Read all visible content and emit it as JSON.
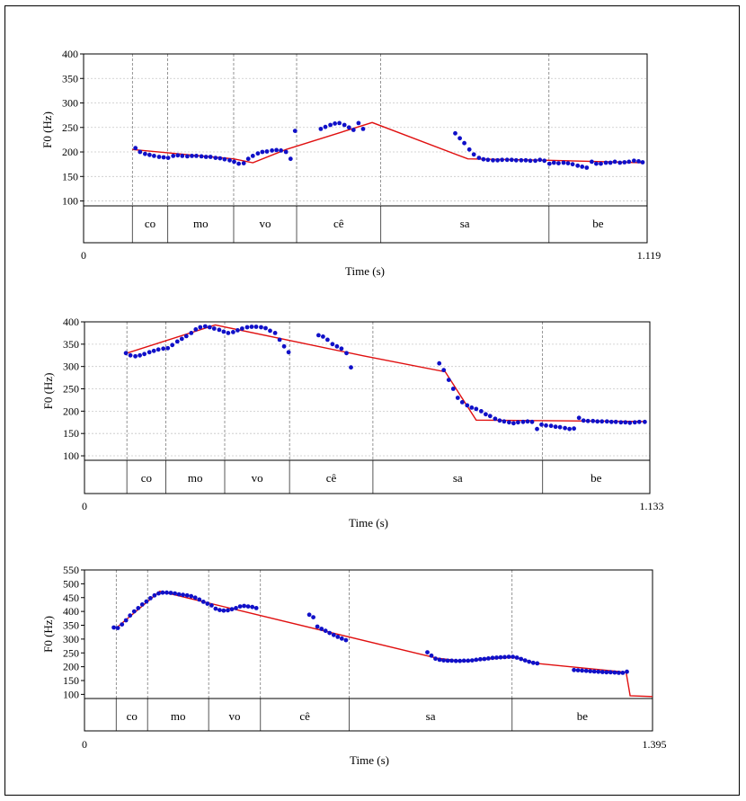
{
  "colors": {
    "points": "#1010c8",
    "fitted_line": "#e01010",
    "grid": "#c8c8c8",
    "divider": "#7a7a7a",
    "frame": "#000000"
  },
  "chart_data": [
    {
      "type": "scatter",
      "ylabel": "F0 (Hz)",
      "xlabel": "Time (s)",
      "xlim": [
        0,
        1.119
      ],
      "x_tick_labels": [
        "0",
        "1.119"
      ],
      "ylim": [
        90,
        400
      ],
      "y_ticks": [
        100,
        150,
        200,
        250,
        300,
        350,
        400
      ],
      "grid": true,
      "syllables": [
        {
          "label": "co",
          "start": 0.097,
          "end": 0.167
        },
        {
          "label": "mo",
          "start": 0.167,
          "end": 0.298
        },
        {
          "label": "vo",
          "start": 0.298,
          "end": 0.423
        },
        {
          "label": "cê",
          "start": 0.423,
          "end": 0.59
        },
        {
          "label": "sa",
          "start": 0.59,
          "end": 0.924
        },
        {
          "label": "be",
          "start": 0.924,
          "end": 1.119
        }
      ],
      "series": [
        {
          "kind": "points",
          "x": [
            0.103,
            0.112,
            0.122,
            0.131,
            0.14,
            0.15,
            0.159,
            0.168,
            0.178,
            0.187,
            0.196,
            0.206,
            0.215,
            0.224,
            0.234,
            0.243,
            0.252,
            0.262,
            0.271,
            0.28,
            0.29,
            0.299,
            0.308,
            0.318,
            0.327,
            0.336,
            0.346,
            0.355,
            0.364,
            0.374,
            0.383,
            0.392,
            0.402,
            0.411,
            0.42,
            0.471,
            0.48,
            0.49,
            0.499,
            0.508,
            0.518,
            0.527,
            0.536,
            0.546,
            0.555,
            0.738,
            0.747,
            0.756,
            0.766,
            0.775,
            0.785,
            0.794,
            0.803,
            0.813,
            0.822,
            0.831,
            0.841,
            0.85,
            0.859,
            0.869,
            0.878,
            0.887,
            0.897,
            0.906,
            0.915,
            0.925,
            0.934,
            0.943,
            0.953,
            0.962,
            0.971,
            0.981,
            0.99,
            0.999,
            1.009,
            1.018,
            1.027,
            1.037,
            1.046,
            1.055,
            1.065,
            1.074,
            1.083,
            1.093,
            1.102,
            1.11
          ],
          "y": [
            208,
            200,
            196,
            194,
            192,
            190,
            189,
            188,
            192,
            193,
            192,
            191,
            192,
            192,
            191,
            190,
            190,
            188,
            187,
            185,
            183,
            180,
            176,
            177,
            186,
            192,
            197,
            200,
            201,
            203,
            204,
            203,
            200,
            186,
            243,
            247,
            251,
            255,
            258,
            259,
            255,
            250,
            245,
            259,
            247,
            238,
            228,
            218,
            205,
            195,
            188,
            185,
            184,
            183,
            183,
            184,
            184,
            184,
            183,
            183,
            183,
            182,
            182,
            184,
            182,
            176,
            178,
            177,
            178,
            177,
            175,
            172,
            170,
            168,
            180,
            176,
            176,
            178,
            178,
            180,
            178,
            179,
            180,
            182,
            181,
            179
          ]
        },
        {
          "kind": "line",
          "x": [
            0.097,
            0.243,
            0.298,
            0.336,
            0.402,
            0.573,
            0.763,
            0.924,
            1.11
          ],
          "y": [
            205,
            191,
            186,
            178,
            205,
            260,
            186,
            183,
            178
          ]
        }
      ]
    },
    {
      "type": "scatter",
      "ylabel": "F0 (Hz)",
      "xlabel": "Time (s)",
      "xlim": [
        0,
        1.133
      ],
      "x_tick_labels": [
        "0",
        "1.133"
      ],
      "ylim": [
        90,
        400
      ],
      "y_ticks": [
        100,
        150,
        200,
        250,
        300,
        350,
        400
      ],
      "grid": true,
      "syllables": [
        {
          "label": "co",
          "start": 0.085,
          "end": 0.163
        },
        {
          "label": "mo",
          "start": 0.163,
          "end": 0.281
        },
        {
          "label": "vo",
          "start": 0.281,
          "end": 0.411
        },
        {
          "label": "cê",
          "start": 0.411,
          "end": 0.578
        },
        {
          "label": "sa",
          "start": 0.578,
          "end": 0.918
        },
        {
          "label": "be",
          "start": 0.918,
          "end": 1.133
        }
      ],
      "series": [
        {
          "kind": "points",
          "x": [
            0.083,
            0.092,
            0.102,
            0.111,
            0.12,
            0.13,
            0.139,
            0.148,
            0.158,
            0.167,
            0.176,
            0.186,
            0.195,
            0.204,
            0.214,
            0.223,
            0.232,
            0.242,
            0.251,
            0.26,
            0.27,
            0.279,
            0.288,
            0.298,
            0.307,
            0.316,
            0.326,
            0.335,
            0.344,
            0.354,
            0.363,
            0.372,
            0.382,
            0.391,
            0.4,
            0.409,
            0.469,
            0.478,
            0.487,
            0.497,
            0.506,
            0.515,
            0.525,
            0.534,
            0.711,
            0.72,
            0.73,
            0.739,
            0.748,
            0.757,
            0.767,
            0.776,
            0.785,
            0.795,
            0.804,
            0.813,
            0.823,
            0.832,
            0.841,
            0.851,
            0.86,
            0.869,
            0.879,
            0.888,
            0.897,
            0.907,
            0.916,
            0.925,
            0.935,
            0.944,
            0.953,
            0.963,
            0.972,
            0.981,
            0.991,
            1.0,
            1.009,
            1.019,
            1.028,
            1.037,
            1.047,
            1.056,
            1.065,
            1.075,
            1.084,
            1.093,
            1.103,
            1.112,
            1.123
          ],
          "y": [
            330,
            325,
            323,
            325,
            328,
            332,
            335,
            338,
            340,
            341,
            348,
            356,
            362,
            368,
            375,
            383,
            388,
            390,
            388,
            385,
            382,
            378,
            375,
            377,
            381,
            385,
            388,
            389,
            389,
            388,
            386,
            380,
            375,
            360,
            345,
            332,
            370,
            367,
            360,
            350,
            345,
            340,
            330,
            298,
            307,
            292,
            270,
            250,
            230,
            220,
            213,
            208,
            205,
            200,
            193,
            189,
            183,
            179,
            177,
            175,
            173,
            175,
            176,
            177,
            176,
            160,
            170,
            168,
            167,
            165,
            164,
            162,
            160,
            161,
            185,
            179,
            178,
            178,
            177,
            177,
            177,
            176,
            176,
            175,
            175,
            174,
            175,
            176,
            176
          ]
        },
        {
          "kind": "line",
          "x": [
            0.085,
            0.262,
            0.559,
            0.723,
            0.785,
            1.123
          ],
          "y": [
            330,
            393,
            324,
            288,
            180,
            177
          ]
        }
      ]
    },
    {
      "type": "scatter",
      "ylabel": "F0 (Hz)",
      "xlabel": "Time (s)",
      "xlim": [
        0,
        1.395
      ],
      "x_tick_labels": [
        "0",
        "1.395"
      ],
      "ylim": [
        85,
        550
      ],
      "y_ticks": [
        100,
        150,
        200,
        250,
        300,
        350,
        400,
        450,
        500,
        550
      ],
      "grid": false,
      "syllables": [
        {
          "label": "co",
          "start": 0.078,
          "end": 0.155
        },
        {
          "label": "mo",
          "start": 0.155,
          "end": 0.305
        },
        {
          "label": "vo",
          "start": 0.305,
          "end": 0.432
        },
        {
          "label": "cê",
          "start": 0.432,
          "end": 0.65
        },
        {
          "label": "sa",
          "start": 0.65,
          "end": 1.05
        },
        {
          "label": "be",
          "start": 1.05,
          "end": 1.395
        }
      ],
      "series": [
        {
          "kind": "points",
          "x": [
            0.072,
            0.082,
            0.092,
            0.102,
            0.112,
            0.122,
            0.132,
            0.142,
            0.152,
            0.162,
            0.172,
            0.182,
            0.192,
            0.202,
            0.212,
            0.222,
            0.232,
            0.242,
            0.252,
            0.262,
            0.272,
            0.282,
            0.292,
            0.302,
            0.312,
            0.322,
            0.332,
            0.342,
            0.352,
            0.362,
            0.372,
            0.382,
            0.392,
            0.402,
            0.412,
            0.422,
            0.552,
            0.562,
            0.572,
            0.582,
            0.592,
            0.602,
            0.612,
            0.622,
            0.632,
            0.642,
            0.842,
            0.852,
            0.862,
            0.872,
            0.882,
            0.892,
            0.902,
            0.912,
            0.922,
            0.932,
            0.942,
            0.952,
            0.962,
            0.972,
            0.982,
            0.992,
            1.002,
            1.012,
            1.022,
            1.032,
            1.042,
            1.052,
            1.062,
            1.072,
            1.082,
            1.092,
            1.102,
            1.112,
            1.202,
            1.212,
            1.222,
            1.232,
            1.242,
            1.252,
            1.262,
            1.272,
            1.282,
            1.292,
            1.302,
            1.312,
            1.322,
            1.332
          ],
          "y": [
            342,
            340,
            353,
            368,
            385,
            400,
            412,
            425,
            436,
            448,
            458,
            465,
            468,
            468,
            467,
            465,
            462,
            460,
            458,
            455,
            450,
            443,
            435,
            428,
            422,
            410,
            405,
            403,
            404,
            408,
            412,
            418,
            420,
            418,
            416,
            412,
            388,
            379,
            345,
            337,
            330,
            322,
            315,
            308,
            302,
            296,
            252,
            240,
            229,
            225,
            223,
            222,
            222,
            221,
            221,
            222,
            222,
            223,
            225,
            227,
            228,
            230,
            232,
            233,
            234,
            235,
            236,
            236,
            233,
            228,
            223,
            218,
            214,
            212,
            188,
            187,
            186,
            185,
            184,
            183,
            182,
            181,
            180,
            180,
            179,
            178,
            178,
            182
          ]
        },
        {
          "kind": "line",
          "x": [
            0.078,
            0.185,
            0.382,
            0.865,
            0.932,
            1.032,
            1.062,
            1.11,
            1.33,
            1.34,
            1.395
          ],
          "y": [
            340,
            473,
            403,
            231,
            220,
            233,
            232,
            212,
            180,
            95,
            92
          ]
        }
      ]
    }
  ]
}
